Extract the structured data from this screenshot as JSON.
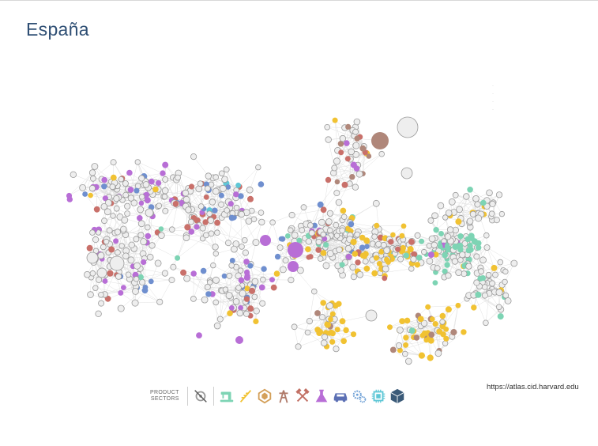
{
  "page": {
    "title": "España",
    "source": "https://atlas.cid.harvard.edu"
  },
  "legend": {
    "label_line1": "PRODUCT",
    "label_line2": "SECTORS",
    "sectors": [
      {
        "icon": "services-disabled-icon",
        "color": "#9a9a9a"
      },
      {
        "icon": "sewing-machine-icon",
        "color": "#7dd4b4"
      },
      {
        "icon": "wheat-icon",
        "color": "#f1c232"
      },
      {
        "icon": "stone-icon",
        "color": "#d4a05a"
      },
      {
        "icon": "mining-tower-icon",
        "color": "#b07b6a"
      },
      {
        "icon": "hammers-icon",
        "color": "#c27064"
      },
      {
        "icon": "flask-icon",
        "color": "#b86ed6"
      },
      {
        "icon": "truck-icon",
        "color": "#5b6fb4"
      },
      {
        "icon": "gears-icon",
        "color": "#6ea0d6"
      },
      {
        "icon": "chip-icon",
        "color": "#5fc7d6"
      },
      {
        "icon": "cube-icon",
        "color": "#3a5a78"
      }
    ]
  }
}
